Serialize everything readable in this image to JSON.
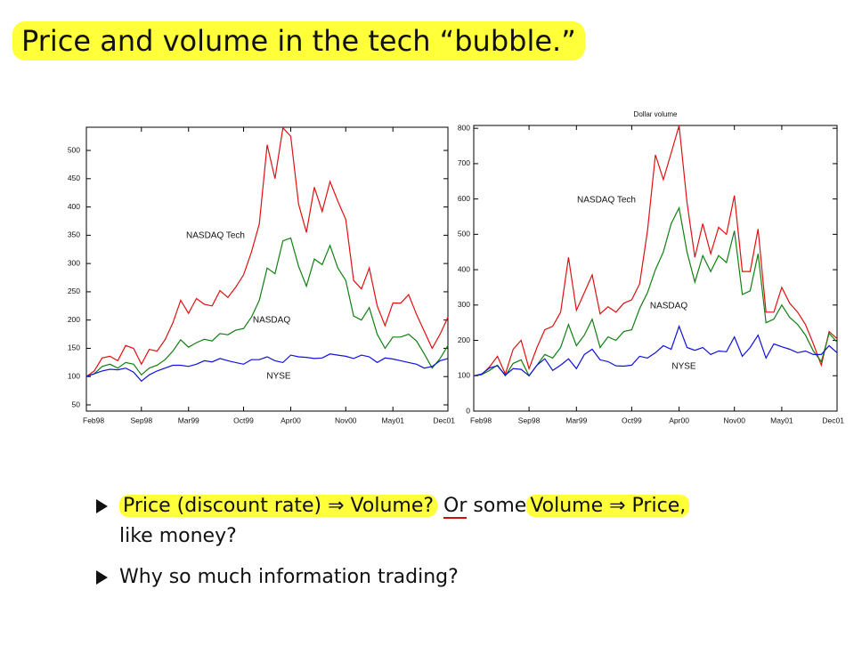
{
  "title": "Price and volume in the tech “bubble.”",
  "chart_data": [
    {
      "type": "line",
      "categories": [
        "Feb98",
        null,
        null,
        null,
        null,
        null,
        null,
        "Sep98",
        null,
        null,
        null,
        null,
        null,
        "Mar99",
        null,
        null,
        null,
        null,
        null,
        null,
        "Oct99",
        null,
        null,
        null,
        null,
        null,
        "Apr00",
        null,
        null,
        null,
        null,
        null,
        null,
        "Nov00",
        null,
        null,
        null,
        null,
        null,
        "May01",
        null,
        null,
        null,
        null,
        null,
        null,
        "Dec01"
      ],
      "ylim": [
        39,
        541
      ],
      "yticks": [
        50,
        100,
        150,
        200,
        250,
        300,
        350,
        400,
        450,
        500
      ],
      "series": [
        {
          "name": "NASDAQ Tech",
          "color": "#e01010",
          "values": [
            100,
            110,
            133,
            136,
            128,
            155,
            150,
            122,
            148,
            145,
            165,
            195,
            235,
            212,
            238,
            228,
            225,
            252,
            240,
            258,
            280,
            320,
            370,
            510,
            450,
            540,
            525,
            405,
            355,
            435,
            392,
            445,
            410,
            378,
            270,
            255,
            292,
            225,
            190,
            230,
            230,
            245,
            210,
            180,
            150,
            175,
            205
          ]
        },
        {
          "name": "NASDAQ",
          "color": "#108010",
          "values": [
            100,
            105,
            118,
            122,
            115,
            125,
            122,
            103,
            115,
            120,
            130,
            145,
            165,
            152,
            160,
            166,
            163,
            176,
            174,
            182,
            185,
            205,
            235,
            292,
            282,
            340,
            345,
            295,
            260,
            308,
            298,
            332,
            292,
            270,
            207,
            200,
            222,
            175,
            150,
            170,
            170,
            175,
            163,
            140,
            115,
            132,
            155
          ]
        },
        {
          "name": "NYSE",
          "color": "#1010e0",
          "values": [
            100,
            105,
            110,
            113,
            112,
            115,
            108,
            92,
            103,
            110,
            115,
            120,
            120,
            118,
            122,
            128,
            126,
            132,
            128,
            125,
            122,
            130,
            130,
            135,
            128,
            125,
            138,
            135,
            134,
            132,
            133,
            140,
            138,
            136,
            132,
            138,
            135,
            125,
            133,
            131,
            128,
            125,
            122,
            115,
            118,
            128,
            132
          ]
        }
      ]
    },
    {
      "type": "line",
      "title": "Dollar volume",
      "categories": [
        "Feb98",
        null,
        null,
        null,
        null,
        null,
        null,
        "Sep98",
        null,
        null,
        null,
        null,
        null,
        "Mar99",
        null,
        null,
        null,
        null,
        null,
        null,
        "Oct99",
        null,
        null,
        null,
        null,
        null,
        "Apr00",
        null,
        null,
        null,
        null,
        null,
        null,
        "Nov00",
        null,
        null,
        null,
        null,
        null,
        "May01",
        null,
        null,
        null,
        null,
        null,
        null,
        "Dec01"
      ],
      "ylim": [
        0,
        808
      ],
      "yticks": [
        0,
        100,
        200,
        300,
        400,
        500,
        600,
        700,
        800
      ],
      "series": [
        {
          "name": "NASDAQ Tech",
          "color": "#e01010",
          "values": [
            100,
            103,
            125,
            155,
            105,
            175,
            200,
            120,
            180,
            230,
            240,
            280,
            435,
            285,
            335,
            385,
            275,
            295,
            280,
            305,
            315,
            360,
            510,
            725,
            655,
            730,
            808,
            590,
            435,
            530,
            445,
            520,
            500,
            610,
            395,
            395,
            515,
            280,
            280,
            350,
            305,
            280,
            245,
            190,
            130,
            225,
            205
          ]
        },
        {
          "name": "NASDAQ",
          "color": "#108010",
          "values": [
            100,
            103,
            115,
            130,
            100,
            135,
            145,
            100,
            130,
            160,
            150,
            180,
            245,
            185,
            215,
            260,
            180,
            210,
            200,
            225,
            230,
            290,
            335,
            400,
            450,
            530,
            575,
            450,
            365,
            440,
            395,
            440,
            420,
            510,
            330,
            340,
            445,
            250,
            260,
            300,
            265,
            245,
            215,
            170,
            140,
            220,
            195
          ]
        },
        {
          "name": "NYSE",
          "color": "#1010e0",
          "values": [
            100,
            105,
            122,
            128,
            102,
            120,
            118,
            100,
            130,
            148,
            115,
            130,
            148,
            120,
            160,
            175,
            145,
            140,
            128,
            127,
            130,
            155,
            150,
            165,
            185,
            175,
            240,
            180,
            172,
            180,
            160,
            170,
            168,
            210,
            155,
            180,
            215,
            150,
            190,
            182,
            175,
            165,
            170,
            160,
            160,
            185,
            165
          ]
        }
      ]
    }
  ],
  "bullets": [
    [
      "Price (discount rate) ⇒ Volume?",
      "Or",
      "some",
      "Volume ⇒ Price,",
      "like money?"
    ],
    [
      "Why so much information trading?"
    ]
  ]
}
